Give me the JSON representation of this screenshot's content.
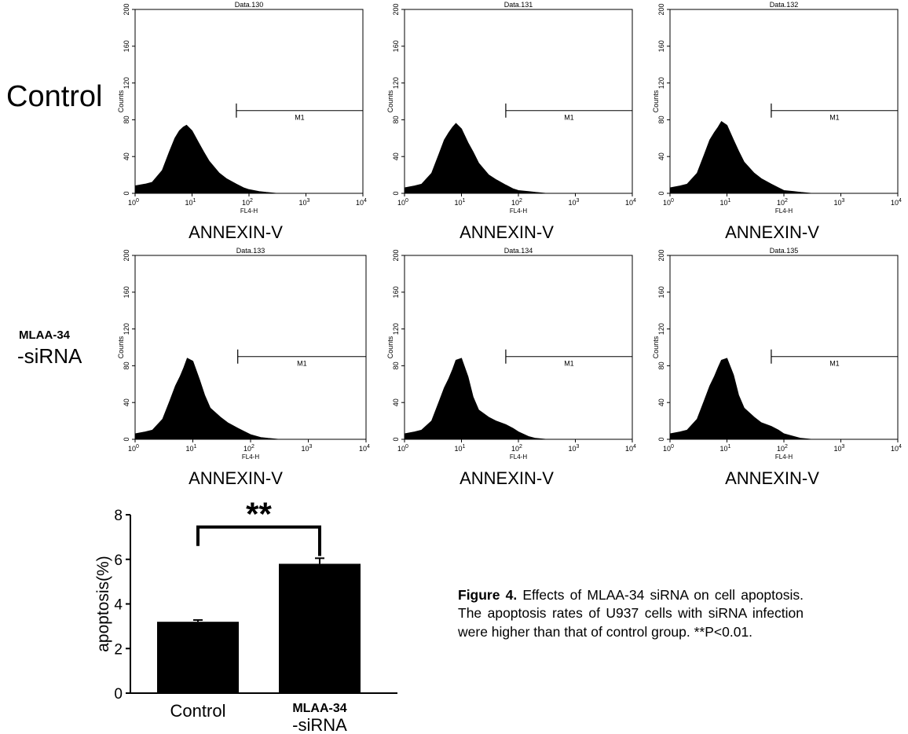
{
  "row_labels": {
    "control": "Control",
    "siRNA_line1": "MLAA-34",
    "siRNA_line2": "-siRNA"
  },
  "panel_xlabel": "ANNEXIN-V",
  "caption": {
    "label": "Figure 4.",
    "text": "Effects of MLAA-34 siRNA on cell apoptosis. The apoptosis rates of U937 cells with siRNA infection were higher than that of control group. **P<0.01."
  },
  "chart_data": [
    {
      "type": "area",
      "title": "Data.130",
      "row": "Control",
      "xscale": "log",
      "xlim": [
        1,
        10000
      ],
      "ylim": [
        0,
        200
      ],
      "yticks": [
        0,
        40,
        80,
        120,
        160,
        200
      ],
      "xticks": [
        "10^0",
        "10^1",
        "10^2",
        "10^3",
        "10^4"
      ],
      "ylabel": "Counts",
      "xlabel": "FL4-H",
      "gate": {
        "label": "M1",
        "x_start": 60,
        "y": 90
      },
      "x": [
        1,
        1.5,
        2,
        3,
        4,
        5,
        6,
        7,
        8,
        10,
        13,
        16,
        20,
        30,
        40,
        60,
        80,
        100,
        150,
        200,
        300
      ],
      "y": [
        8,
        10,
        12,
        25,
        45,
        60,
        68,
        72,
        74,
        68,
        55,
        45,
        35,
        22,
        16,
        10,
        6,
        4,
        2,
        1,
        0
      ]
    },
    {
      "type": "area",
      "title": "Data.131",
      "row": "Control",
      "xscale": "log",
      "xlim": [
        1,
        10000
      ],
      "ylim": [
        0,
        200
      ],
      "yticks": [
        0,
        40,
        80,
        120,
        160,
        200
      ],
      "xticks": [
        "10^0",
        "10^1",
        "10^2",
        "10^3",
        "10^4"
      ],
      "ylabel": "Counts",
      "xlabel": "FL4-H",
      "gate": {
        "label": "M1",
        "x_start": 60,
        "y": 90
      },
      "x": [
        1,
        1.5,
        2,
        3,
        4,
        5,
        6,
        7,
        8,
        10,
        13,
        16,
        20,
        30,
        40,
        60,
        80,
        100,
        150,
        200,
        300
      ],
      "y": [
        6,
        8,
        10,
        22,
        42,
        58,
        66,
        72,
        76,
        70,
        55,
        45,
        33,
        20,
        15,
        9,
        5,
        3,
        2,
        1,
        0
      ]
    },
    {
      "type": "area",
      "title": "Data.132",
      "row": "Control",
      "xscale": "log",
      "xlim": [
        1,
        10000
      ],
      "ylim": [
        0,
        200
      ],
      "yticks": [
        0,
        40,
        80,
        120,
        160,
        200
      ],
      "xticks": [
        "10^0",
        "10^1",
        "10^2",
        "10^3",
        "10^4"
      ],
      "ylabel": "Counts",
      "xlabel": "FL4-H",
      "gate": {
        "label": "M1",
        "x_start": 60,
        "y": 90
      },
      "x": [
        1,
        1.5,
        2,
        3,
        4,
        5,
        6,
        7,
        8,
        10,
        13,
        16,
        20,
        30,
        40,
        60,
        80,
        100,
        150,
        200,
        300
      ],
      "y": [
        6,
        8,
        10,
        22,
        42,
        58,
        66,
        72,
        78,
        74,
        58,
        46,
        34,
        22,
        16,
        10,
        6,
        3,
        2,
        1,
        0
      ]
    },
    {
      "type": "area",
      "title": "Data.133",
      "row": "MLAA-34 -siRNA",
      "xscale": "log",
      "xlim": [
        1,
        10000
      ],
      "ylim": [
        0,
        200
      ],
      "yticks": [
        0,
        40,
        80,
        120,
        160,
        200
      ],
      "xticks": [
        "10^0",
        "10^1",
        "10^2",
        "10^3",
        "10^4"
      ],
      "ylabel": "Counts",
      "xlabel": "FL4-H",
      "gate": {
        "label": "M1",
        "x_start": 60,
        "y": 90
      },
      "x": [
        1,
        1.5,
        2,
        3,
        4,
        5,
        6,
        7,
        8,
        10,
        13,
        16,
        20,
        30,
        40,
        60,
        80,
        100,
        150,
        200,
        300
      ],
      "y": [
        6,
        8,
        10,
        22,
        42,
        58,
        68,
        78,
        88,
        85,
        65,
        48,
        34,
        24,
        18,
        12,
        8,
        5,
        2,
        1,
        0
      ]
    },
    {
      "type": "area",
      "title": "Data.134",
      "row": "MLAA-34 -siRNA",
      "xscale": "log",
      "xlim": [
        1,
        10000
      ],
      "ylim": [
        0,
        200
      ],
      "yticks": [
        0,
        40,
        80,
        120,
        160,
        200
      ],
      "xticks": [
        "10^0",
        "10^1",
        "10^2",
        "10^3",
        "10^4"
      ],
      "ylabel": "Counts",
      "xlabel": "FL4-H",
      "gate": {
        "label": "M1",
        "x_start": 60,
        "y": 90
      },
      "x": [
        1,
        1.5,
        2,
        3,
        4,
        5,
        6,
        7,
        8,
        10,
        13,
        16,
        20,
        30,
        40,
        60,
        80,
        100,
        150,
        200,
        300
      ],
      "y": [
        6,
        8,
        10,
        20,
        40,
        56,
        66,
        76,
        86,
        88,
        68,
        46,
        32,
        24,
        20,
        16,
        12,
        8,
        3,
        1,
        0
      ]
    },
    {
      "type": "area",
      "title": "Data.135",
      "row": "MLAA-34 -siRNA",
      "xscale": "log",
      "xlim": [
        1,
        10000
      ],
      "ylim": [
        0,
        200
      ],
      "yticks": [
        0,
        40,
        80,
        120,
        160,
        200
      ],
      "xticks": [
        "10^0",
        "10^1",
        "10^2",
        "10^3",
        "10^4"
      ],
      "ylabel": "Counts",
      "xlabel": "FL4-H",
      "gate": {
        "label": "M1",
        "x_start": 60,
        "y": 90
      },
      "x": [
        1,
        1.5,
        2,
        3,
        4,
        5,
        6,
        7,
        8,
        10,
        13,
        16,
        20,
        30,
        40,
        60,
        80,
        100,
        150,
        200,
        300
      ],
      "y": [
        6,
        8,
        10,
        22,
        42,
        58,
        68,
        78,
        86,
        88,
        70,
        48,
        34,
        24,
        18,
        14,
        10,
        6,
        3,
        1,
        0
      ]
    },
    {
      "type": "bar",
      "categories": [
        [
          "Control"
        ],
        [
          "MLAA-34",
          "-siRNA"
        ]
      ],
      "values": [
        3.2,
        5.8
      ],
      "errors": [
        0.08,
        0.25
      ],
      "ylabel": "apoptosis(%)",
      "ylim": [
        0,
        8
      ],
      "yticks": [
        0,
        2,
        4,
        6,
        8
      ],
      "annotation": {
        "text": "**",
        "between": [
          0,
          1
        ]
      }
    }
  ]
}
